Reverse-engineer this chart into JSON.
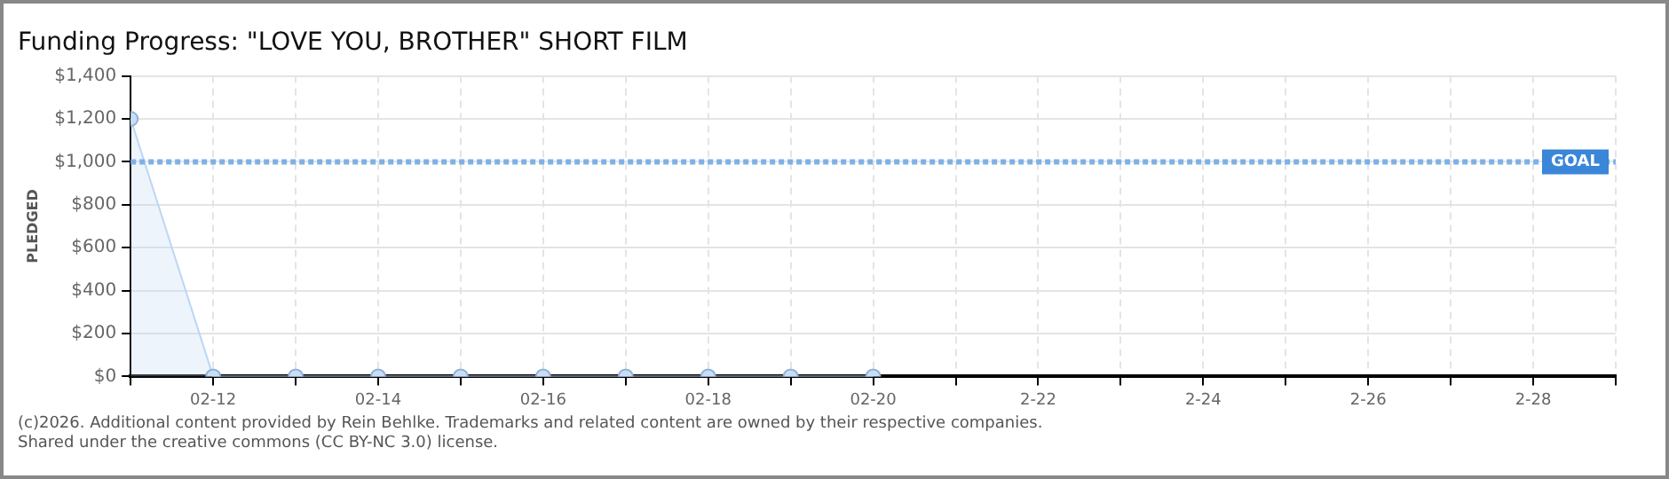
{
  "chart_data": {
    "type": "area",
    "title": "Funding Progress: \"LOVE YOU, BROTHER\" SHORT FILM",
    "ylabel": "PLEDGED",
    "x": [
      "--02-11",
      "--02-12",
      "--02-13",
      "--02-14",
      "--02-15",
      "--02-16",
      "--02-17",
      "--02-18",
      "--02-19",
      "--02-20"
    ],
    "series": [
      {
        "color": "#bcd6f4",
        "values": [
          1200,
          0,
          0,
          0,
          0,
          0,
          0,
          0,
          0,
          0
        ]
      }
    ],
    "xlim": [
      "--02-11",
      "--03-01"
    ],
    "xticks": [
      {
        "value": "--02-11",
        "label": null
      },
      {
        "value": "--02-12",
        "label": "02-12"
      },
      {
        "value": "--02-13",
        "label": null
      },
      {
        "value": "--02-14",
        "label": "02-14"
      },
      {
        "value": "--02-15",
        "label": null
      },
      {
        "value": "--02-16",
        "label": "02-16"
      },
      {
        "value": "--02-17",
        "label": null
      },
      {
        "value": "--02-18",
        "label": "02-18"
      },
      {
        "value": "--02-19",
        "label": null
      },
      {
        "value": "--02-20",
        "label": "02-20"
      },
      {
        "value": "--02-21",
        "label": null
      },
      {
        "value": "--02-22",
        "label": "2-22"
      },
      {
        "value": "--02-23",
        "label": null
      },
      {
        "value": "--02-24",
        "label": "2-24"
      },
      {
        "value": "--02-25",
        "label": null
      },
      {
        "value": "--02-26",
        "label": "2-26"
      },
      {
        "value": "--02-27",
        "label": null
      },
      {
        "value": "--02-28",
        "label": "2-28"
      },
      {
        "value": "--03-01",
        "label": null
      }
    ],
    "ylim": [
      0,
      1400
    ],
    "yticks": [
      {
        "value": 0,
        "label": "$0"
      },
      {
        "value": 200,
        "label": "$200"
      },
      {
        "value": 400,
        "label": "$400"
      },
      {
        "value": 600,
        "label": "$600"
      },
      {
        "value": 800,
        "label": "$800"
      },
      {
        "value": 1000,
        "label": "$1,000"
      },
      {
        "value": 1200,
        "label": "$1,200"
      },
      {
        "value": 1400,
        "label": "$1,400"
      }
    ],
    "grid": true,
    "marker": "circle",
    "line_style": "solid",
    "ref_lines": [
      {
        "axis": "y",
        "value": 1000,
        "label": "GOAL",
        "color": "#7fb0e6",
        "line_style": "dotted"
      }
    ],
    "annotations": [
      "(c)2026. Additional content provided by Rein Behlke. Trademarks and related content are owned by their respective companies.",
      "Shared under the creative commons (CC BY-NC 3.0) license."
    ]
  }
}
